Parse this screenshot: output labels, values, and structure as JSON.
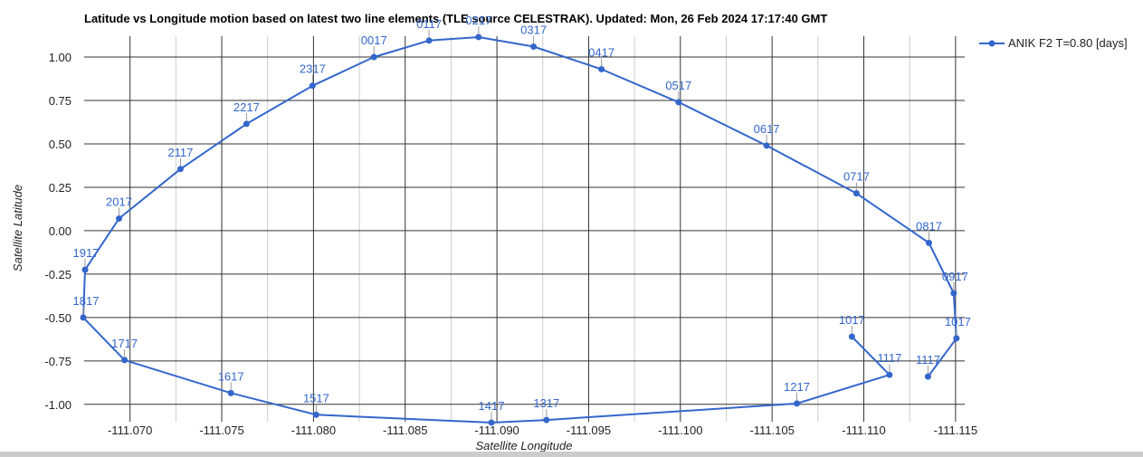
{
  "chart_data": {
    "type": "line",
    "title": "Latitude vs Longitude motion based on latest two line elements (TLE source CELESTRAK). Updated: Mon, 26 Feb 2024 17:17:40 GMT",
    "xlabel": "Satellite Longitude",
    "ylabel": "Satellite Latitude",
    "x_axis_reversed": true,
    "xlim": [
      -111.0675,
      -111.1155
    ],
    "ylim": [
      -1.1,
      1.12
    ],
    "x_ticks": [
      {
        "value": -111.07,
        "label": "-111.070"
      },
      {
        "value": -111.075,
        "label": "-111.075"
      },
      {
        "value": -111.08,
        "label": "-111.080"
      },
      {
        "value": -111.085,
        "label": "-111.085"
      },
      {
        "value": -111.09,
        "label": "-111.090"
      },
      {
        "value": -111.095,
        "label": "-111.095"
      },
      {
        "value": -111.1,
        "label": "-111.100"
      },
      {
        "value": -111.105,
        "label": "-111.105"
      },
      {
        "value": -111.11,
        "label": "-111.110"
      },
      {
        "value": -111.115,
        "label": "-111.115"
      }
    ],
    "x_minor_gridlines": [
      -111.0725,
      -111.0775,
      -111.0825,
      -111.0875,
      -111.0925,
      -111.0975,
      -111.1025,
      -111.1075,
      -111.1125
    ],
    "y_ticks": [
      {
        "value": 1.0,
        "label": "1.00"
      },
      {
        "value": 0.75,
        "label": "0.75"
      },
      {
        "value": 0.5,
        "label": "0.50"
      },
      {
        "value": 0.25,
        "label": "0.25"
      },
      {
        "value": 0.0,
        "label": "0.00"
      },
      {
        "value": -0.25,
        "label": "-0.25"
      },
      {
        "value": -0.5,
        "label": "-0.50"
      },
      {
        "value": -0.75,
        "label": "-0.75"
      },
      {
        "value": -1.0,
        "label": "-1.00"
      }
    ],
    "grid": true,
    "legend_position": "top-right",
    "series": [
      {
        "name": "ANIK F2 T=0.80 [days]",
        "color": "#3366cc",
        "points": [
          {
            "x": -111.10935,
            "y": -0.61,
            "label": "1017"
          },
          {
            "x": -111.1114,
            "y": -0.83,
            "label": "1117"
          },
          {
            "x": -111.10635,
            "y": -0.995,
            "label": "1217"
          },
          {
            "x": -111.0927,
            "y": -1.09,
            "label": "1317"
          },
          {
            "x": -111.0897,
            "y": -1.105,
            "label": "1417"
          },
          {
            "x": -111.08015,
            "y": -1.06,
            "label": "1517"
          },
          {
            "x": -111.0755,
            "y": -0.935,
            "label": "1617"
          },
          {
            "x": -111.0697,
            "y": -0.745,
            "label": "1717"
          },
          {
            "x": -111.06745,
            "y": -0.5,
            "label": "1817"
          },
          {
            "x": -111.06755,
            "y": -0.225,
            "label": "1917"
          },
          {
            "x": -111.0694,
            "y": 0.07,
            "label": "2017"
          },
          {
            "x": -111.07275,
            "y": 0.355,
            "label": "2117"
          },
          {
            "x": -111.07635,
            "y": 0.615,
            "label": "2217"
          },
          {
            "x": -111.07995,
            "y": 0.835,
            "label": "2317"
          },
          {
            "x": -111.0833,
            "y": 1.0,
            "label": "0017"
          },
          {
            "x": -111.0863,
            "y": 1.095,
            "label": "0117"
          },
          {
            "x": -111.089,
            "y": 1.115,
            "label": "0217"
          },
          {
            "x": -111.092,
            "y": 1.06,
            "label": "0317"
          },
          {
            "x": -111.0957,
            "y": 0.93,
            "label": "0417"
          },
          {
            "x": -111.0999,
            "y": 0.74,
            "label": "0517"
          },
          {
            "x": -111.1047,
            "y": 0.49,
            "label": "0617"
          },
          {
            "x": -111.1096,
            "y": 0.215,
            "label": "0717"
          },
          {
            "x": -111.11355,
            "y": -0.07,
            "label": "0817"
          },
          {
            "x": -111.1149,
            "y": -0.36,
            "label": "0917"
          },
          {
            "x": -111.11505,
            "y": -0.62,
            "label": "1017"
          },
          {
            "x": -111.1135,
            "y": -0.84,
            "label": "1117"
          }
        ]
      }
    ]
  }
}
